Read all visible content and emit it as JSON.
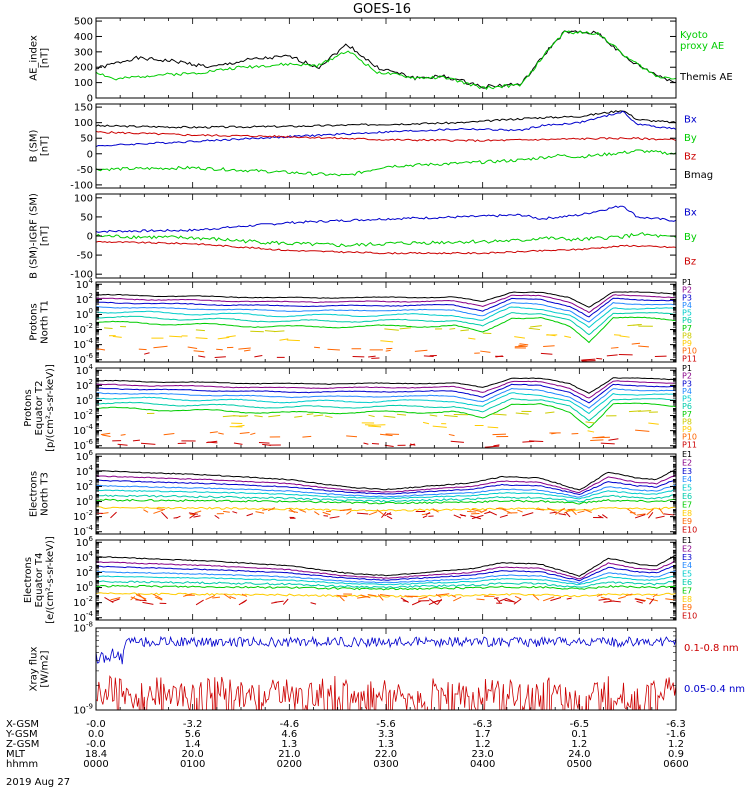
{
  "figure": {
    "title": "GOES-16",
    "date": "2019 Aug 27"
  },
  "panels": [
    {
      "id": "ae",
      "ylabel": [
        "AE_index",
        "[nT]"
      ],
      "yscale": "linear",
      "ylim": [
        0,
        520
      ],
      "ticks": [
        "0",
        "100",
        "200",
        "300",
        "400",
        "500"
      ],
      "tick_values": [
        0,
        100,
        200,
        300,
        400,
        500
      ],
      "legend": [
        {
          "text": "Kyoto",
          "color": "#00cc00"
        },
        {
          "text": "proxy AE",
          "color": "#00cc00"
        },
        {
          "text": "Themis AE",
          "color": "#000000"
        }
      ],
      "series": [
        {
          "name": "Themis AE",
          "color": "#000000",
          "seed": 1,
          "knots": [
            [
              0,
              190
            ],
            [
              0.4,
              260
            ],
            [
              0.8,
              240
            ],
            [
              1.2,
              200
            ],
            [
              1.6,
              250
            ],
            [
              2.0,
              270
            ],
            [
              2.3,
              200
            ],
            [
              2.6,
              350
            ],
            [
              2.9,
              200
            ],
            [
              3.3,
              130
            ],
            [
              3.6,
              140
            ],
            [
              4.0,
              75
            ],
            [
              4.4,
              90
            ],
            [
              4.7,
              330
            ],
            [
              4.85,
              430
            ],
            [
              5.2,
              420
            ],
            [
              5.5,
              250
            ],
            [
              5.8,
              150
            ],
            [
              6.0,
              100
            ]
          ],
          "noise": 12
        },
        {
          "name": "Kyoto proxy AE",
          "color": "#00cc00",
          "seed": 2,
          "knots": [
            [
              0,
              170
            ],
            [
              0.2,
              120
            ],
            [
              0.6,
              150
            ],
            [
              1.0,
              160
            ],
            [
              1.5,
              200
            ],
            [
              2.0,
              220
            ],
            [
              2.3,
              210
            ],
            [
              2.6,
              310
            ],
            [
              2.9,
              170
            ],
            [
              3.3,
              130
            ],
            [
              3.6,
              135
            ],
            [
              4.0,
              65
            ],
            [
              4.4,
              85
            ],
            [
              4.7,
              330
            ],
            [
              4.85,
              430
            ],
            [
              5.2,
              420
            ],
            [
              5.5,
              260
            ],
            [
              5.8,
              140
            ],
            [
              6.0,
              130
            ]
          ],
          "noise": 10
        }
      ]
    },
    {
      "id": "bsm",
      "ylabel": [
        "B (SM)",
        "[nT]"
      ],
      "yscale": "linear",
      "ylim": [
        -110,
        160
      ],
      "ticks": [
        "-100",
        "-50",
        "0",
        "50",
        "100",
        "150"
      ],
      "tick_values": [
        -100,
        -50,
        0,
        50,
        100,
        150
      ],
      "legend": [
        {
          "text": "Bx",
          "color": "#0000cc"
        },
        {
          "text": "By",
          "color": "#00cc00"
        },
        {
          "text": "Bz",
          "color": "#cc0000"
        },
        {
          "text": "Bmag",
          "color": "#000000"
        }
      ],
      "series": [
        {
          "name": "Bmag",
          "color": "#000000",
          "seed": 3,
          "knots": [
            [
              0,
              90
            ],
            [
              1,
              85
            ],
            [
              2,
              88
            ],
            [
              3,
              95
            ],
            [
              3.8,
              100
            ],
            [
              4.5,
              115
            ],
            [
              5.0,
              120
            ],
            [
              5.45,
              140
            ],
            [
              5.6,
              110
            ],
            [
              6.0,
              100
            ]
          ],
          "noise": 3
        },
        {
          "name": "Bx",
          "color": "#0000cc",
          "seed": 4,
          "knots": [
            [
              0,
              25
            ],
            [
              1,
              40
            ],
            [
              2,
              55
            ],
            [
              3,
              70
            ],
            [
              3.8,
              80
            ],
            [
              4.4,
              75
            ],
            [
              4.6,
              90
            ],
            [
              5.0,
              100
            ],
            [
              5.45,
              135
            ],
            [
              5.6,
              95
            ],
            [
              6.0,
              80
            ]
          ],
          "noise": 3
        },
        {
          "name": "Bz",
          "color": "#cc0000",
          "seed": 5,
          "knots": [
            [
              0,
              70
            ],
            [
              1,
              60
            ],
            [
              2,
              55
            ],
            [
              3,
              45
            ],
            [
              4,
              42
            ],
            [
              5,
              48
            ],
            [
              5.5,
              50
            ],
            [
              6.0,
              45
            ]
          ],
          "noise": 3
        },
        {
          "name": "By",
          "color": "#00cc00",
          "seed": 6,
          "knots": [
            [
              0,
              -50
            ],
            [
              1,
              -45
            ],
            [
              2,
              -60
            ],
            [
              2.6,
              -70
            ],
            [
              3,
              -40
            ],
            [
              3.8,
              -30
            ],
            [
              4.4,
              -20
            ],
            [
              4.8,
              -5
            ],
            [
              5.0,
              -10
            ],
            [
              5.5,
              5
            ],
            [
              5.6,
              10
            ],
            [
              6.0,
              0
            ]
          ],
          "noise": 5
        }
      ]
    },
    {
      "id": "bsmigrf",
      "ylabel": [
        "B (SM)-IGRF (SM)",
        "[nT]"
      ],
      "yscale": "linear",
      "ylim": [
        -110,
        110
      ],
      "ticks": [
        "-100",
        "-50",
        "0",
        "50",
        "100"
      ],
      "tick_values": [
        -100,
        -50,
        0,
        50,
        100
      ],
      "legend": [
        {
          "text": "Bx",
          "color": "#0000cc"
        },
        {
          "text": "By",
          "color": "#00cc00"
        },
        {
          "text": "Bz",
          "color": "#cc0000"
        }
      ],
      "series": [
        {
          "name": "Bx",
          "color": "#0000cc",
          "seed": 7,
          "knots": [
            [
              0,
              12
            ],
            [
              1,
              15
            ],
            [
              1.5,
              25
            ],
            [
              2,
              35
            ],
            [
              3,
              45
            ],
            [
              3.8,
              50
            ],
            [
              4.4,
              55
            ],
            [
              4.6,
              45
            ],
            [
              5.0,
              55
            ],
            [
              5.45,
              80
            ],
            [
              5.6,
              50
            ],
            [
              6.0,
              40
            ]
          ],
          "noise": 3
        },
        {
          "name": "By",
          "color": "#00cc00",
          "seed": 8,
          "knots": [
            [
              0,
              0
            ],
            [
              1,
              -5
            ],
            [
              2,
              -20
            ],
            [
              2.6,
              -25
            ],
            [
              3,
              -20
            ],
            [
              3.8,
              -15
            ],
            [
              4.4,
              -12
            ],
            [
              4.6,
              -5
            ],
            [
              5.0,
              -10
            ],
            [
              5.5,
              0
            ],
            [
              5.6,
              5
            ],
            [
              6.0,
              -5
            ]
          ],
          "noise": 5
        },
        {
          "name": "Bz",
          "color": "#cc0000",
          "seed": 9,
          "knots": [
            [
              0,
              -15
            ],
            [
              1,
              -20
            ],
            [
              2,
              -38
            ],
            [
              3,
              -45
            ],
            [
              4,
              -45
            ],
            [
              5,
              -35
            ],
            [
              5.5,
              -25
            ],
            [
              6.0,
              -30
            ]
          ],
          "noise": 2
        }
      ]
    },
    {
      "id": "pn",
      "ylabel": [
        "Protons",
        "North T1"
      ],
      "yscale": "log",
      "ylim": [
        -6.3,
        4.3
      ],
      "ticks": [
        "10^-6",
        "10^-4",
        "10^-2",
        "10^0",
        "10^2",
        "10^4"
      ],
      "tick_values": [
        -6,
        -4,
        -2,
        0,
        2,
        4
      ],
      "legend_prefix": "P",
      "legend_count": 11,
      "family": "proton",
      "seed": 20
    },
    {
      "id": "pe",
      "ylabel": [
        "Protons",
        "Equator T2",
        "[p/(cm²-s-sr-keV)]"
      ],
      "yscale": "log",
      "ylim": [
        -6.3,
        4.3
      ],
      "ticks": [
        "10^-6",
        "10^-4",
        "10^-2",
        "10^0",
        "10^2",
        "10^4"
      ],
      "tick_values": [
        -6,
        -4,
        -2,
        0,
        2,
        4
      ],
      "legend_prefix": "P",
      "legend_count": 11,
      "family": "proton",
      "seed": 30
    },
    {
      "id": "en",
      "ylabel": [
        "Electrons",
        "North T3"
      ],
      "yscale": "log",
      "ylim": [
        -4.3,
        6.3
      ],
      "ticks": [
        "10^-4",
        "10^-2",
        "10^0",
        "10^2",
        "10^4",
        "10^6"
      ],
      "tick_values": [
        -4,
        -2,
        0,
        2,
        4,
        6
      ],
      "legend_prefix": "E",
      "legend_count": 10,
      "family": "electron",
      "seed": 40
    },
    {
      "id": "ee",
      "ylabel": [
        "Electrons",
        "Equator T4",
        "[e/(cm²-s-sr-keV)]"
      ],
      "yscale": "log",
      "ylim": [
        -4.3,
        6.3
      ],
      "ticks": [
        "10^-4",
        "10^-2",
        "10^0",
        "10^2",
        "10^4",
        "10^6"
      ],
      "tick_values": [
        -4,
        -2,
        0,
        2,
        4,
        6
      ],
      "legend_prefix": "E",
      "legend_count": 10,
      "family": "electron",
      "seed": 50
    },
    {
      "id": "xray",
      "ylabel": [
        "Xray flux",
        "[W/m2]"
      ],
      "yscale": "log",
      "ylim": [
        -9,
        -8
      ],
      "ticks": [
        "10^-9",
        "10^-8"
      ],
      "tick_values": [
        -9,
        -8
      ],
      "legend": [
        {
          "text": "0.1-0.8 nm",
          "color": "#cc0000"
        },
        {
          "text": "0.05-0.4 nm",
          "color": "#0000cc"
        }
      ]
    }
  ],
  "chart_data": {
    "type": "line",
    "title": "GOES-16",
    "x": [
      "0000",
      "0100",
      "0200",
      "0300",
      "0400",
      "0500",
      "0600"
    ],
    "x_hours": [
      0,
      1,
      2,
      3,
      4,
      5,
      6
    ],
    "xlim": [
      0,
      6
    ],
    "xlabel": "hhmm"
  },
  "ephemeris": {
    "rows": [
      {
        "label": "X-GSM",
        "values": [
          "-0.0",
          "-3.2",
          "-4.6",
          "-5.6",
          "-6.3",
          "-6.5",
          "-6.3"
        ]
      },
      {
        "label": "Y-GSM",
        "values": [
          "0.0",
          "5.6",
          "4.6",
          "3.3",
          "1.7",
          "0.1",
          "-1.6"
        ]
      },
      {
        "label": "Z-GSM",
        "values": [
          "-0.0",
          "1.4",
          "1.3",
          "1.3",
          "1.2",
          "1.2",
          "1.2"
        ]
      },
      {
        "label": "MLT",
        "values": [
          "18.4",
          "20.0",
          "21.0",
          "22.0",
          "23.0",
          "24.0",
          "0.9"
        ]
      },
      {
        "label": "hhmm",
        "values": [
          "0000",
          "0100",
          "0200",
          "0300",
          "0400",
          "0500",
          "0600"
        ]
      }
    ]
  },
  "colors": {
    "palette": [
      "#000000",
      "#880088",
      "#0000cc",
      "#2288ff",
      "#00cccc",
      "#00ccaa",
      "#00cc00",
      "#cccc00",
      "#ffcc00",
      "#ff6600",
      "#cc0000"
    ]
  }
}
